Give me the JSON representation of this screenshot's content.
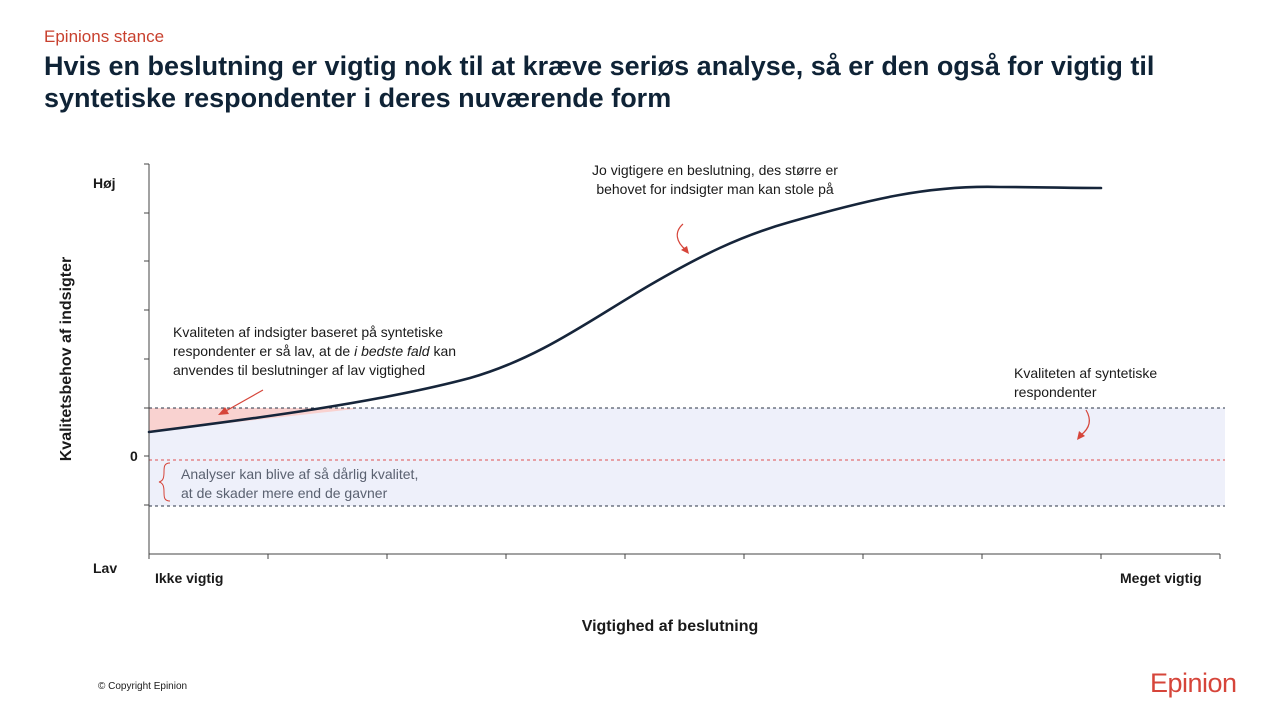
{
  "header": {
    "kicker": "Epinions stance",
    "title": "Hvis en beslutning er vigtig nok til at kræve seriøs analyse, så er den også for vigtig til syntetiske respondenter i deres nuværende form"
  },
  "chart_data": {
    "type": "line",
    "ylabel": "Kvalitetsbehov af indsigter",
    "xlabel": "Vigtighed af beslutning",
    "y_tick_labels": {
      "high": "Høj",
      "zero": "0",
      "low": "Lav"
    },
    "x_tick_labels": {
      "left": "Ikke vigtig",
      "right": "Meget vigtig"
    },
    "annotations": {
      "curve_note_line1": "Jo vigtigere en beslutning, des større er",
      "curve_note_line2": "behovet for indsigter man kan stole på",
      "synthetic_note_line1": "Kvaliteten af indsigter baseret på syntetiske",
      "synthetic_note_line2_a": "respondenter er så lav, at de ",
      "synthetic_note_line2_em": "i bedste fald",
      "synthetic_note_line2_b": " kan",
      "synthetic_note_line3": "anvendes til beslutninger af lav vigtighed",
      "band_note_line1": "Kvaliteten af syntetiske",
      "band_note_line2": "respondenter",
      "harm_note_line1": "Analyser kan blive af så dårlig kvalitet,",
      "harm_note_line2": "at de skader mere end de gavner"
    },
    "colors": {
      "curve": "#16253a",
      "band_fill": "#eef0fa",
      "highlight_fill": "#f9d2d0",
      "arrow": "#d6453a",
      "zero_line": "#e05050"
    }
  },
  "footer": {
    "copyright": "© Copyright Epinion",
    "logo": "Epinion"
  }
}
